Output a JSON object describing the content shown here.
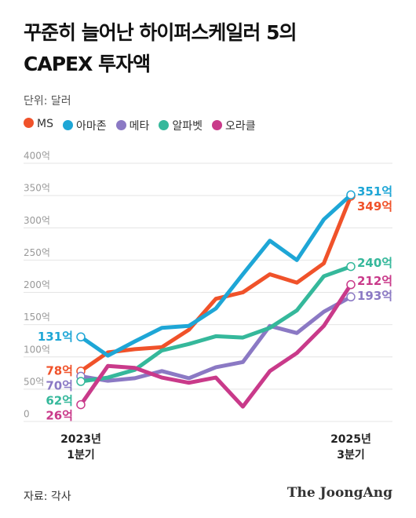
{
  "chart_data": {
    "type": "line",
    "title": "꾸준히 늘어난 하이퍼스케일러 5의\nCAPEX 투자액",
    "subtitle": "단위: 달러",
    "categories": [
      "2023년\n1분기",
      null,
      null,
      null,
      null,
      null,
      null,
      null,
      null,
      null,
      "2025년\n3분기"
    ],
    "series": [
      {
        "name": "MS",
        "color": "#f0522a",
        "values": [
          78,
          107,
          112,
          115,
          142,
          190,
          200,
          228,
          215,
          245,
          349
        ],
        "value_labels": [
          "78억",
          null,
          null,
          null,
          null,
          null,
          null,
          null,
          null,
          null,
          "349억"
        ]
      },
      {
        "name": "아마존",
        "color": "#1ea6d6",
        "values": [
          131,
          102,
          124,
          145,
          148,
          175,
          228,
          280,
          250,
          313,
          351
        ],
        "value_labels": [
          "131억",
          null,
          null,
          null,
          null,
          null,
          null,
          null,
          null,
          null,
          "351억"
        ]
      },
      {
        "name": "메타",
        "color": "#8b79c4",
        "values": [
          70,
          63,
          67,
          78,
          67,
          84,
          92,
          148,
          137,
          170,
          193
        ],
        "value_labels": [
          "70억",
          null,
          null,
          null,
          null,
          null,
          null,
          null,
          null,
          null,
          "193억"
        ]
      },
      {
        "name": "알파벳",
        "color": "#35b89b",
        "values": [
          62,
          68,
          80,
          110,
          120,
          132,
          130,
          145,
          172,
          225,
          240
        ],
        "value_labels": [
          "62억",
          null,
          null,
          null,
          null,
          null,
          null,
          null,
          null,
          null,
          "240억"
        ]
      },
      {
        "name": "오라클",
        "color": "#c93a8a",
        "values": [
          26,
          86,
          83,
          68,
          60,
          68,
          23,
          78,
          106,
          148,
          212
        ],
        "value_labels": [
          "26억",
          null,
          null,
          null,
          null,
          null,
          null,
          null,
          null,
          null,
          "212억"
        ]
      }
    ],
    "ylim": [
      0,
      400
    ],
    "yticks": [
      0,
      {
        "value": 50,
        "label": "50억"
      },
      {
        "value": 100,
        "label": "100억"
      },
      {
        "value": 150,
        "label": "150억"
      },
      {
        "value": 200,
        "label": "200억"
      },
      {
        "value": 250,
        "label": "250억"
      },
      {
        "value": 300,
        "label": "300억"
      },
      {
        "value": 350,
        "label": "350억"
      },
      {
        "value": 400,
        "label": "400억"
      }
    ],
    "grid": true,
    "source": "자료: 각사",
    "brand": "The JoongAng"
  }
}
